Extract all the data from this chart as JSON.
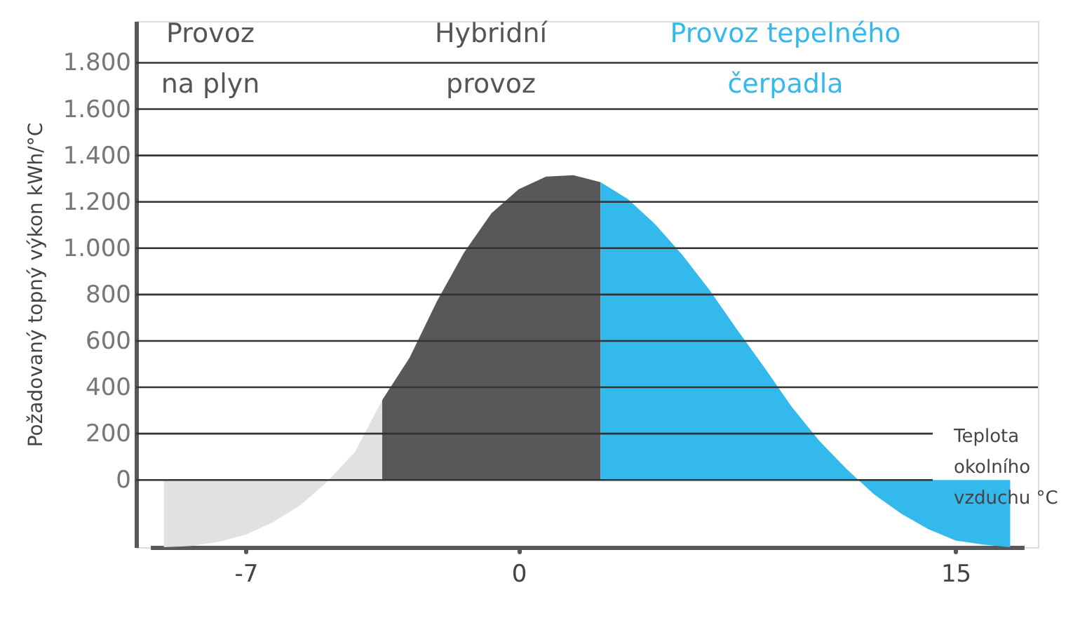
{
  "chart_data": {
    "type": "area",
    "ylabel": "Požadovaný topný výkon kWh/°C",
    "xlabel": "Teplota okolního vzduchu °C",
    "categories": [
      null,
      null,
      null,
      "-7",
      null,
      null,
      null,
      null,
      null,
      null,
      null,
      null,
      null,
      "0",
      null,
      null,
      null,
      null,
      null,
      null,
      null,
      null,
      null,
      null,
      null,
      null,
      null,
      null,
      null,
      "15",
      null,
      null
    ],
    "series": [
      {
        "color": "#e1e1e3",
        "values": [
          -290,
          -285,
          -267,
          -236,
          -182,
          -109,
          -6,
          121,
          345,
          null,
          null,
          null,
          null,
          null,
          null,
          null,
          null,
          null,
          null,
          null,
          null,
          null,
          null,
          null,
          null,
          null,
          null,
          null,
          null,
          null,
          null,
          null
        ]
      },
      {
        "color": "#58585a",
        "values": [
          null,
          null,
          null,
          null,
          null,
          null,
          null,
          null,
          345,
          527,
          770,
          982,
          1151,
          1254,
          1309,
          1315,
          1285,
          null,
          null,
          null,
          null,
          null,
          null,
          null,
          null,
          null,
          null,
          null,
          null,
          null,
          null,
          null
        ]
      },
      {
        "color": "#33b9ec",
        "values": [
          null,
          null,
          null,
          null,
          null,
          null,
          null,
          null,
          null,
          null,
          null,
          null,
          null,
          null,
          null,
          null,
          1285,
          1212,
          1103,
          970,
          818,
          648,
          485,
          315,
          170,
          48,
          -61,
          -145,
          -212,
          -261,
          -279,
          -290
        ]
      }
    ],
    "ylim": [
      -290,
      1980
    ],
    "yticks": [
      {
        "value": 0,
        "label": "0"
      },
      {
        "value": 200,
        "label": "200"
      },
      {
        "value": 400,
        "label": "400"
      },
      {
        "value": 600,
        "label": "600"
      },
      {
        "value": 800,
        "label": "800"
      },
      {
        "value": 1000,
        "label": "1.000"
      },
      {
        "value": 1200,
        "label": "1.200"
      },
      {
        "value": 1400,
        "label": "1.400"
      },
      {
        "value": 1600,
        "label": "1.600"
      },
      {
        "value": 1800,
        "label": "1.800"
      }
    ],
    "grid": "y",
    "annotations": [
      "Provoz na plyn",
      "Hybridní provoz",
      "Provoz tepelného čerpadla"
    ]
  }
}
